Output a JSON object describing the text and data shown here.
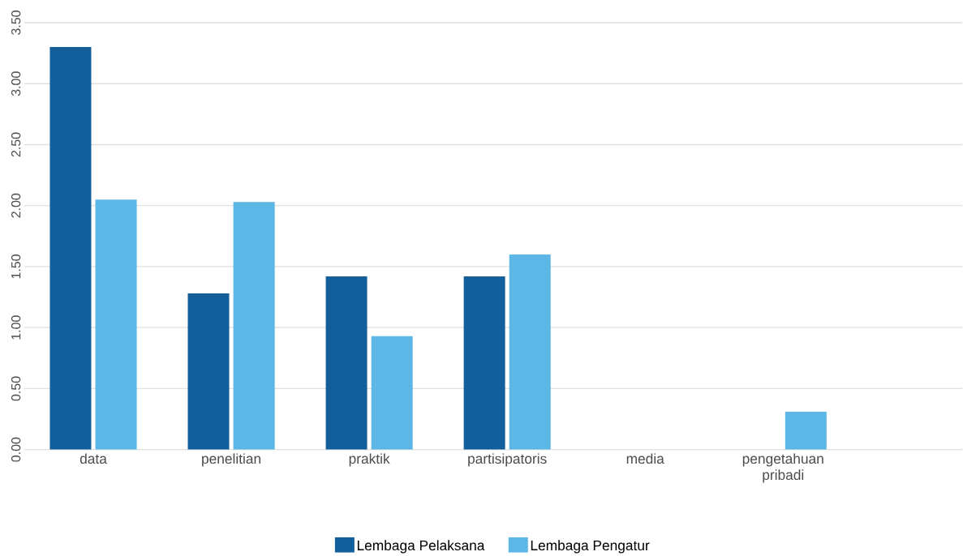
{
  "chart_data": {
    "type": "bar",
    "categories": [
      "data",
      "penelitian",
      "praktik",
      "partisipatoris",
      "media",
      "pengetahuan pribadi"
    ],
    "series": [
      {
        "name": "Lembaga Pelaksana",
        "color": "#125f9c",
        "values": [
          3.3,
          1.28,
          1.42,
          1.42,
          null,
          null
        ]
      },
      {
        "name": "Lembaga Pengatur",
        "color": "#5cb6e6",
        "values": [
          2.05,
          2.03,
          0.93,
          1.6,
          null,
          0.31
        ]
      }
    ],
    "ylim": [
      0,
      3.5
    ],
    "yticks": [
      {
        "value": 0,
        "label": "0.00"
      },
      {
        "value": 0.5,
        "label": "0.50"
      },
      {
        "value": 1,
        "label": "1.00"
      },
      {
        "value": 1.5,
        "label": "1.50"
      },
      {
        "value": 2,
        "label": "2.00"
      },
      {
        "value": 2.5,
        "label": "2.50"
      },
      {
        "value": 3,
        "label": "3.00"
      },
      {
        "value": 3.5,
        "label": "3.50"
      }
    ],
    "grid": "y",
    "legend": "bottom"
  }
}
